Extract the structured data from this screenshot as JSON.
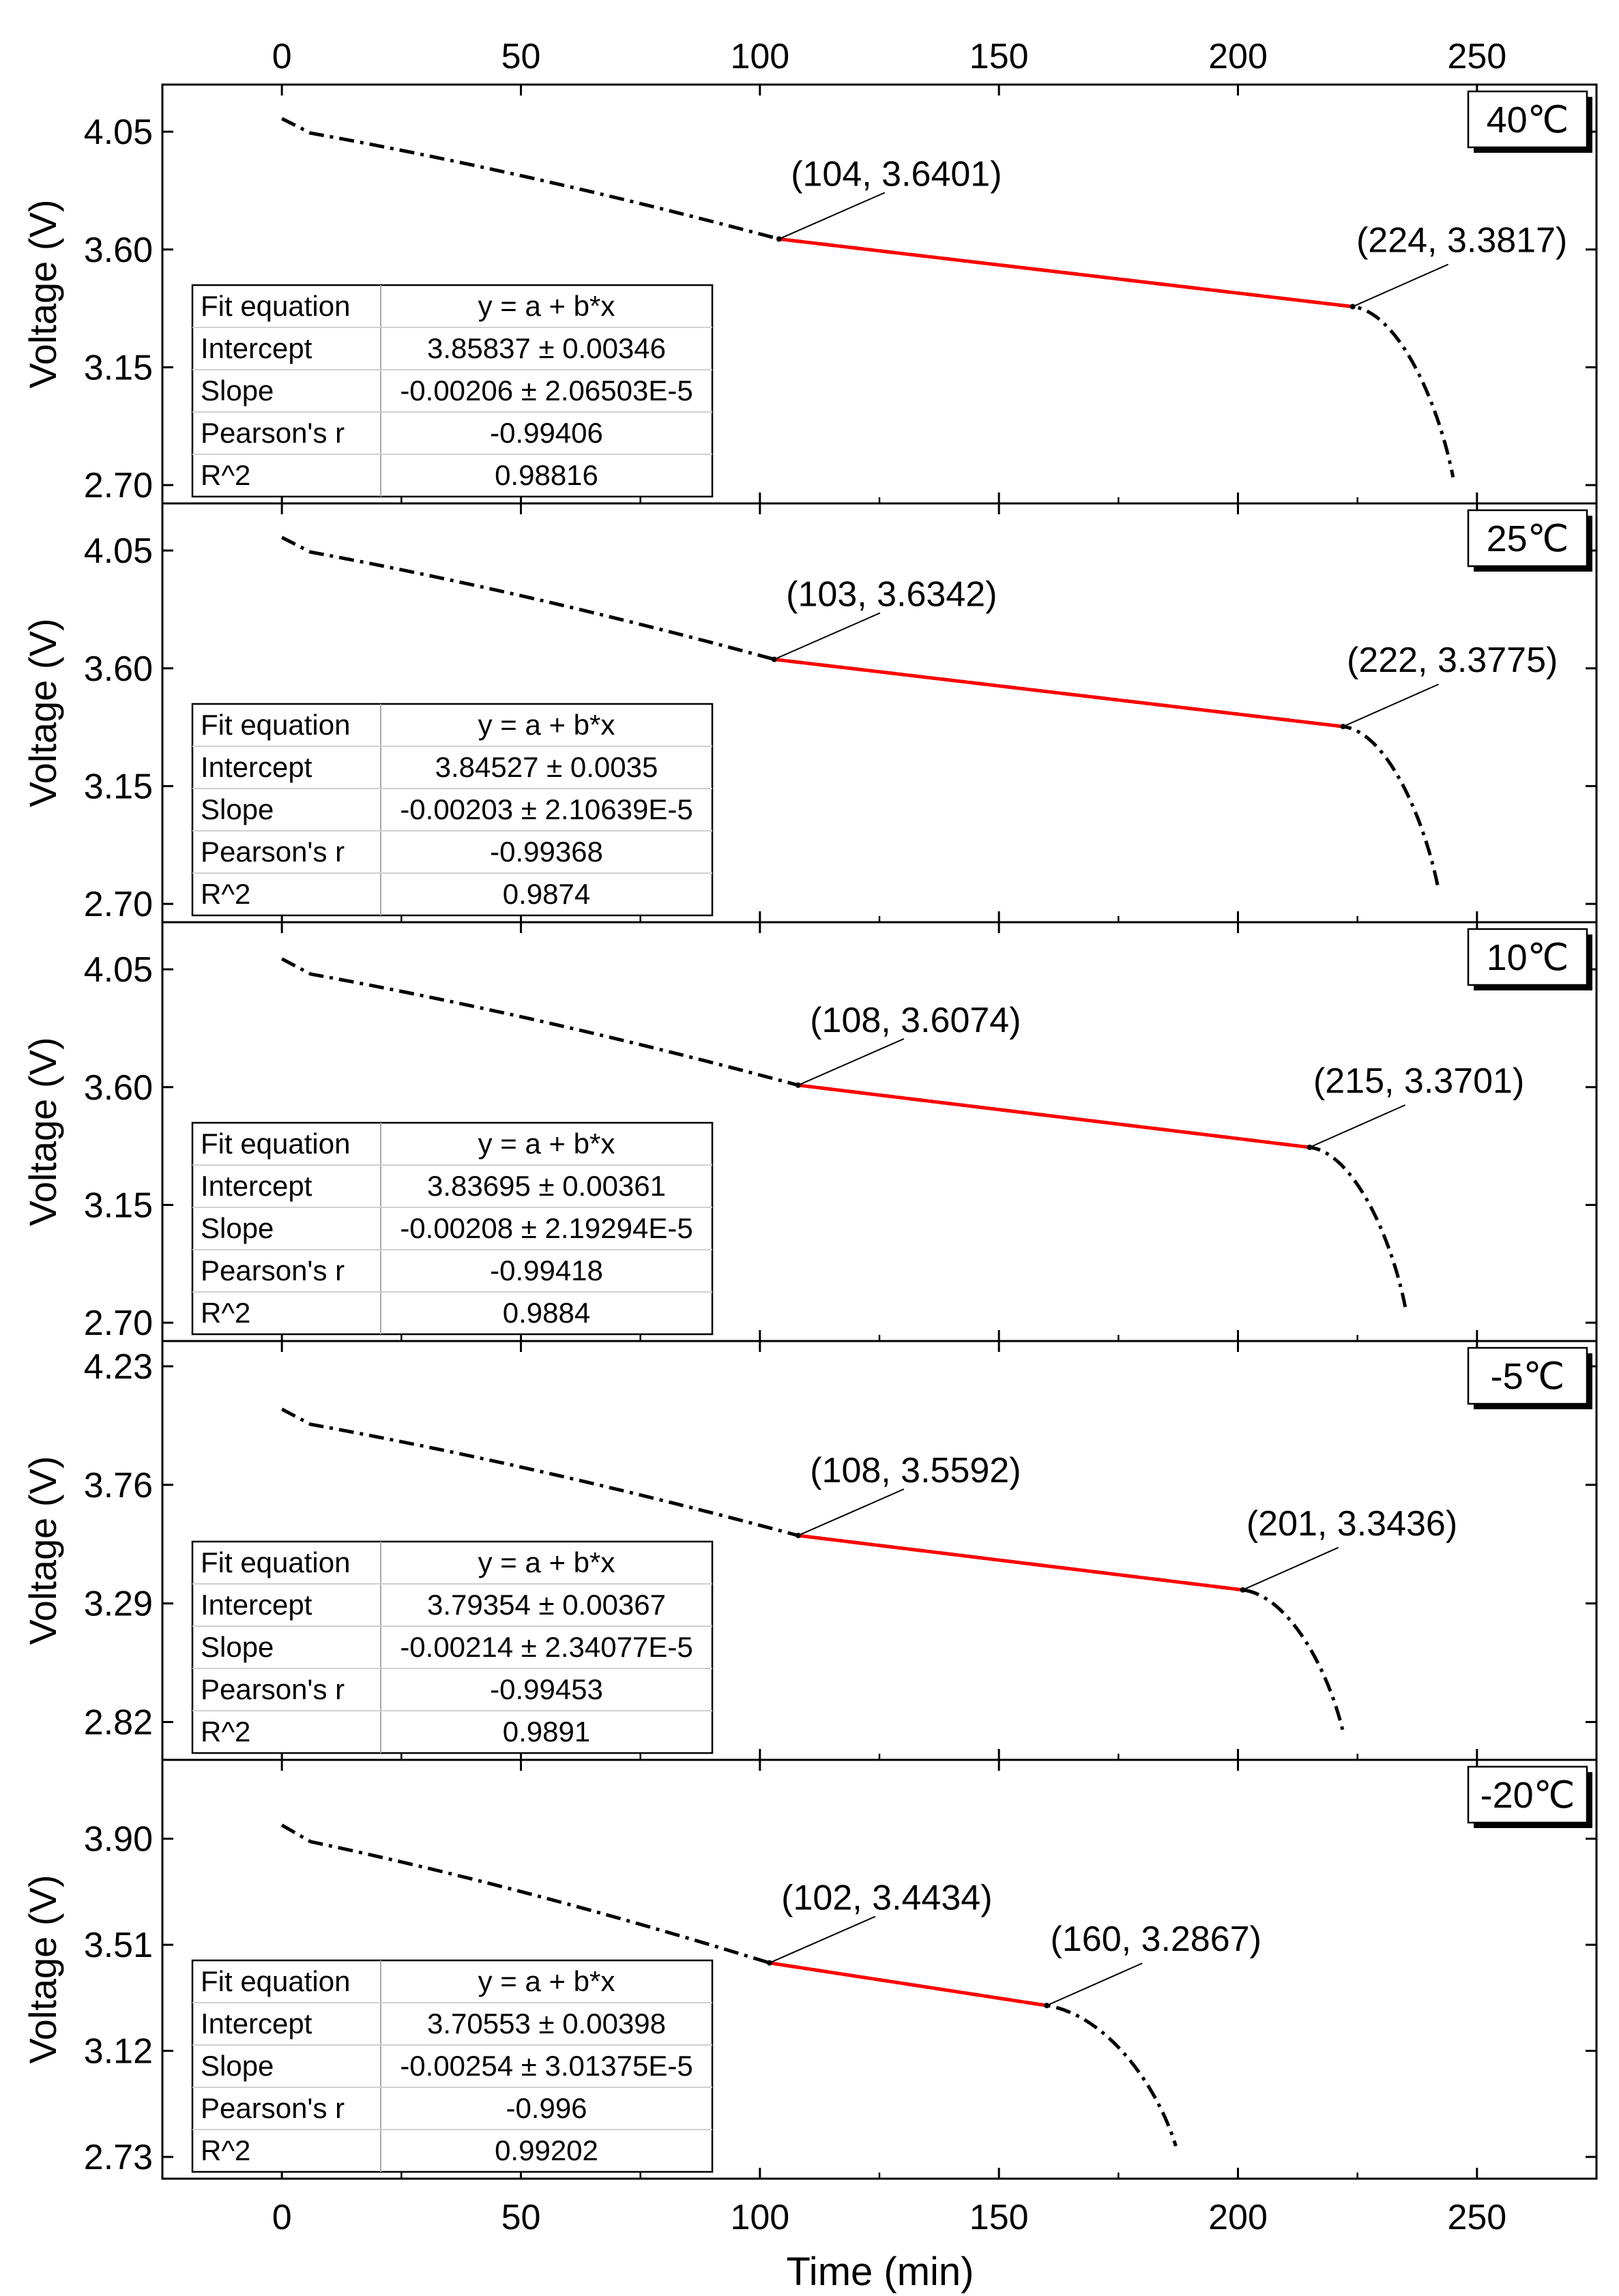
{
  "chart_data": {
    "type": "line",
    "xlabel": "Time (min)",
    "xlim": [
      -25,
      275
    ],
    "xticks": [
      0,
      50,
      100,
      150,
      200,
      250
    ],
    "fit_headers": {
      "equation": "Fit equation",
      "intercept": "Intercept",
      "slope": "Slope",
      "pearson": "Pearson's r",
      "r2": "R^2"
    },
    "panels": [
      {
        "temperature": "40℃",
        "ylabel": "Voltage (V)",
        "ylim": [
          2.63,
          4.23
        ],
        "yticks": [
          "4.05",
          "3.60",
          "3.15",
          "2.70"
        ],
        "start": [
          0,
          4.1
        ],
        "end_time": 245,
        "end_voltage": 2.73,
        "fit_start": {
          "x": 104,
          "y": 3.6401,
          "label": "(104, 3.6401)"
        },
        "fit_end": {
          "x": 224,
          "y": 3.3817,
          "label": "(224, 3.3817)"
        },
        "fit": {
          "equation": "y = a + b*x",
          "intercept": "3.85837 ± 0.00346",
          "slope": "-0.00206 ± 2.06503E-5",
          "pearson": "-0.99406",
          "r2": "0.98816"
        }
      },
      {
        "temperature": "25℃",
        "ylabel": "Voltage (V)",
        "ylim": [
          2.63,
          4.23
        ],
        "yticks": [
          "4.05",
          "3.60",
          "3.15",
          "2.70"
        ],
        "start": [
          0,
          4.1
        ],
        "end_time": 242,
        "end_voltage": 2.75,
        "fit_start": {
          "x": 103,
          "y": 3.6342,
          "label": "(103, 3.6342)"
        },
        "fit_end": {
          "x": 222,
          "y": 3.3775,
          "label": "(222, 3.3775)"
        },
        "fit": {
          "equation": "y = a + b*x",
          "intercept": "3.84527 ± 0.0035",
          "slope": "-0.00203 ± 2.10639E-5",
          "pearson": "-0.99368",
          "r2": "0.9874"
        }
      },
      {
        "temperature": "10℃",
        "ylabel": "Voltage (V)",
        "ylim": [
          2.63,
          4.23
        ],
        "yticks": [
          "4.05",
          "3.60",
          "3.15",
          "2.70"
        ],
        "start": [
          0,
          4.09
        ],
        "end_time": 235,
        "end_voltage": 2.76,
        "fit_start": {
          "x": 108,
          "y": 3.6074,
          "label": "(108, 3.6074)"
        },
        "fit_end": {
          "x": 215,
          "y": 3.3701,
          "label": "(215, 3.3701)"
        },
        "fit": {
          "equation": "y = a + b*x",
          "intercept": "3.83695 ± 0.00361",
          "slope": "-0.00208 ± 2.19294E-5",
          "pearson": "-0.99418",
          "r2": "0.9884"
        }
      },
      {
        "temperature": "-5℃",
        "ylabel": "Voltage (V)",
        "ylim": [
          2.67,
          4.33
        ],
        "yticks": [
          "4.23",
          "3.76",
          "3.29",
          "2.82"
        ],
        "start": [
          0,
          4.06
        ],
        "end_time": 222,
        "end_voltage": 2.78,
        "fit_start": {
          "x": 108,
          "y": 3.5592,
          "label": "(108, 3.5592)"
        },
        "fit_end": {
          "x": 201,
          "y": 3.3436,
          "label": "(201, 3.3436)"
        },
        "fit": {
          "equation": "y = a + b*x",
          "intercept": "3.79354 ± 0.00367",
          "slope": "-0.00214 ± 2.34077E-5",
          "pearson": "-0.99453",
          "r2": "0.9891"
        }
      },
      {
        "temperature": "-20℃",
        "ylabel": "Voltage (V)",
        "ylim": [
          2.65,
          4.19
        ],
        "yticks": [
          "3.90",
          "3.51",
          "3.12",
          "2.73"
        ],
        "start": [
          0,
          3.95
        ],
        "end_time": 187,
        "end_voltage": 2.77,
        "fit_start": {
          "x": 102,
          "y": 3.4434,
          "label": "(102, 3.4434)"
        },
        "fit_end": {
          "x": 160,
          "y": 3.2867,
          "label": "(160, 3.2867)"
        },
        "fit": {
          "equation": "y = a + b*x",
          "intercept": "3.70553 ± 0.00398",
          "slope": "-0.00254 ± 3.01375E-5",
          "pearson": "-0.996",
          "r2": "0.99202"
        }
      }
    ]
  }
}
